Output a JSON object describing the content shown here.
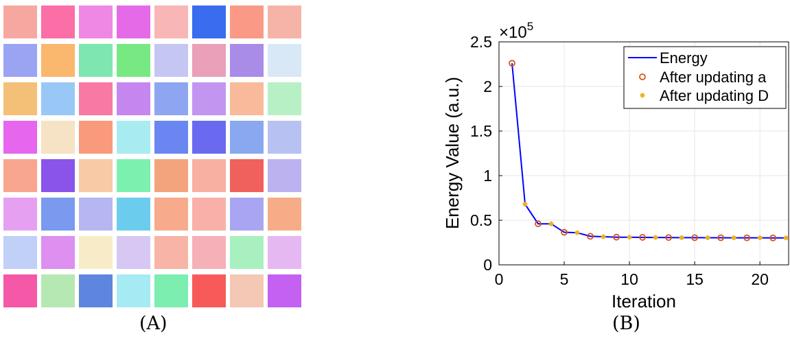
{
  "panel_a": {
    "caption": "(A)",
    "tiles": [
      [
        "#f6a8a0",
        "#fb6ea6",
        "#ee88e4",
        "#e56ae8",
        "#f8b6b6",
        "#3a6cf0",
        "#fa9a86",
        "#f6b4a8"
      ],
      [
        "#9aa4f2",
        "#f9b86e",
        "#7ee6b0",
        "#78e882",
        "#c6c6f2",
        "#e9a0b8",
        "#a88ce8",
        "#d8e8f6"
      ],
      [
        "#f4c078",
        "#9ac8f6",
        "#f87aa4",
        "#c686f0",
        "#8ea6f2",
        "#c296f0",
        "#f8ba9a",
        "#b8f0c6"
      ],
      [
        "#e666ee",
        "#f6e2c4",
        "#fa9a7c",
        "#a8ecf2",
        "#6a86f0",
        "#6a6af0",
        "#8aa8f0",
        "#b8c2f2"
      ],
      [
        "#f8a690",
        "#8a54ea",
        "#f8caa6",
        "#7cf0ae",
        "#f4a47c",
        "#f7b0a2",
        "#f0605c",
        "#bcb2f0"
      ],
      [
        "#e6a0f2",
        "#7a9af0",
        "#b6b6f2",
        "#6cccee",
        "#f8aa8c",
        "#f8b0a8",
        "#a8a6f2",
        "#f6ac86"
      ],
      [
        "#c0d0f6",
        "#dd90f0",
        "#f8ecc8",
        "#d6c8f2",
        "#f8b4a6",
        "#f6b0b8",
        "#a8f0c0",
        "#e6b8f2"
      ],
      [
        "#f458a6",
        "#b6e8b4",
        "#5e86e0",
        "#a6eaf4",
        "#7ceeb0",
        "#f85a5a",
        "#f4c8b4",
        "#c460f2"
      ]
    ]
  },
  "panel_b": {
    "caption": "(B)",
    "exponent_label": "×10",
    "exponent_power": "5"
  },
  "chart_data": {
    "type": "line",
    "xlabel": "Iteration",
    "ylabel": "Energy Value (a.u.)",
    "xlim": [
      0,
      22.2
    ],
    "ylim": [
      0,
      2.5
    ],
    "y_scale_note": "×10^5",
    "xticks": [
      0,
      5,
      10,
      15,
      20
    ],
    "yticks": [
      0,
      0.5,
      1,
      1.5,
      2,
      2.5
    ],
    "ytick_labels": [
      "0",
      "0.5",
      "1",
      "1.5",
      "2",
      "2.5"
    ],
    "grid": true,
    "legend_position": "top-right",
    "colors": {
      "line": "#0000ff",
      "marker_a": "#d95319",
      "marker_d": "#edb120"
    },
    "series": [
      {
        "name": "Energy",
        "x": [
          1,
          2,
          3,
          4,
          5,
          6,
          7,
          8,
          9,
          10,
          11,
          12,
          13,
          14,
          15,
          16,
          17,
          18,
          19,
          20,
          21,
          22
        ],
        "values": [
          2.26,
          0.68,
          0.46,
          0.46,
          0.365,
          0.36,
          0.32,
          0.315,
          0.31,
          0.31,
          0.308,
          0.307,
          0.306,
          0.305,
          0.305,
          0.304,
          0.304,
          0.303,
          0.303,
          0.303,
          0.302,
          0.302
        ]
      },
      {
        "name": "After updating a",
        "x": [
          1,
          3,
          5,
          7,
          9,
          11,
          13,
          15,
          17,
          19,
          21
        ],
        "values": [
          2.26,
          0.46,
          0.365,
          0.32,
          0.31,
          0.308,
          0.306,
          0.305,
          0.304,
          0.303,
          0.302
        ]
      },
      {
        "name": "After updating D",
        "x": [
          2,
          4,
          6,
          8,
          10,
          12,
          14,
          16,
          18,
          20,
          22
        ],
        "values": [
          0.68,
          0.46,
          0.36,
          0.315,
          0.31,
          0.307,
          0.305,
          0.304,
          0.303,
          0.303,
          0.302
        ]
      }
    ]
  }
}
